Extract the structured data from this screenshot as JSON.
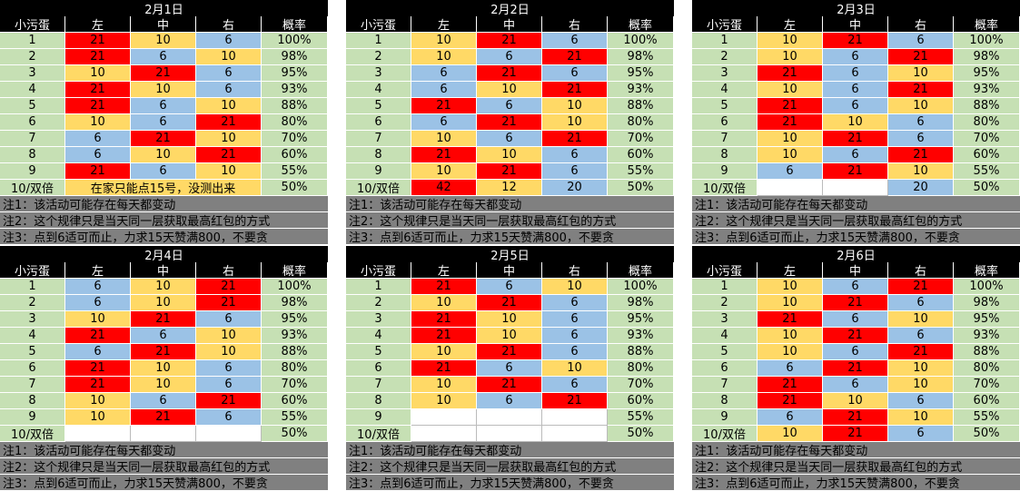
{
  "header": {
    "c0": "小污蛋",
    "c1": "左",
    "c2": "中",
    "c3": "右",
    "c4": "概率"
  },
  "notes": [
    "注1：该活动可能存在每天都变动",
    "注2：这个规律只是当天同一层获取最高红包的方式",
    "注3：点到6适可而止，力求15天赞满800，不要贪"
  ],
  "colors": {
    "red": "#ff0000",
    "yellow": "#ffd966",
    "blue": "#9bc2e6",
    "green": "#c6e0b4",
    "gray": "#808080",
    "black": "#000000"
  },
  "panels": [
    {
      "title": "2月1日",
      "rows": [
        {
          "idx": "1",
          "c": [
            "21",
            "10",
            "6"
          ],
          "p": "100%"
        },
        {
          "idx": "2",
          "c": [
            "21",
            "6",
            "10"
          ],
          "p": "98%"
        },
        {
          "idx": "3",
          "c": [
            "10",
            "21",
            "6"
          ],
          "p": "95%"
        },
        {
          "idx": "4",
          "c": [
            "21",
            "10",
            "6"
          ],
          "p": "93%"
        },
        {
          "idx": "5",
          "c": [
            "21",
            "6",
            "10"
          ],
          "p": "88%"
        },
        {
          "idx": "6",
          "c": [
            "10",
            "6",
            "21"
          ],
          "p": "80%"
        },
        {
          "idx": "7",
          "c": [
            "6",
            "21",
            "10"
          ],
          "p": "70%"
        },
        {
          "idx": "8",
          "c": [
            "6",
            "10",
            "21"
          ],
          "p": "60%"
        },
        {
          "idx": "9",
          "c": [
            "21",
            "6",
            "10"
          ],
          "p": "55%"
        },
        {
          "idx": "10/双倍",
          "merged": "在家只能点15号，没测出来",
          "p": "50%"
        }
      ]
    },
    {
      "title": "2月2日",
      "rows": [
        {
          "idx": "1",
          "c": [
            "10",
            "21",
            "6"
          ],
          "p": "100%"
        },
        {
          "idx": "2",
          "c": [
            "10",
            "6",
            "21"
          ],
          "p": "98%"
        },
        {
          "idx": "3",
          "c": [
            "6",
            "21",
            "6"
          ],
          "p": "95%"
        },
        {
          "idx": "4",
          "c": [
            "6",
            "10",
            "21"
          ],
          "p": "93%"
        },
        {
          "idx": "5",
          "c": [
            "21",
            "6",
            "10"
          ],
          "p": "88%"
        },
        {
          "idx": "6",
          "c": [
            "6",
            "21",
            "10"
          ],
          "p": "80%"
        },
        {
          "idx": "7",
          "c": [
            "10",
            "6",
            "21"
          ],
          "p": "70%"
        },
        {
          "idx": "8",
          "c": [
            "21",
            "10",
            "6"
          ],
          "p": "60%"
        },
        {
          "idx": "9",
          "c": [
            "10",
            "21",
            "6"
          ],
          "p": "55%"
        },
        {
          "idx": "10/双倍",
          "c": [
            "42",
            "12",
            "20"
          ],
          "p": "50%"
        }
      ]
    },
    {
      "title": "2月3日",
      "rows": [
        {
          "idx": "1",
          "c": [
            "10",
            "21",
            "6"
          ],
          "p": "100%"
        },
        {
          "idx": "2",
          "c": [
            "10",
            "6",
            "21"
          ],
          "p": "98%"
        },
        {
          "idx": "3",
          "c": [
            "21",
            "6",
            "10"
          ],
          "p": "95%"
        },
        {
          "idx": "4",
          "c": [
            "10",
            "6",
            "21"
          ],
          "p": "93%"
        },
        {
          "idx": "5",
          "c": [
            "21",
            "6",
            "10"
          ],
          "p": "88%"
        },
        {
          "idx": "6",
          "c": [
            "21",
            "10",
            "6"
          ],
          "p": "80%"
        },
        {
          "idx": "7",
          "c": [
            "10",
            "21",
            "6"
          ],
          "p": "70%"
        },
        {
          "idx": "8",
          "c": [
            "10",
            "6",
            "21"
          ],
          "p": "60%"
        },
        {
          "idx": "9",
          "c": [
            "6",
            "21",
            "10"
          ],
          "p": "55%"
        },
        {
          "idx": "10/双倍",
          "c": [
            "",
            "",
            "20"
          ],
          "p": "50%"
        }
      ]
    },
    {
      "title": "2月4日",
      "rows": [
        {
          "idx": "1",
          "c": [
            "6",
            "10",
            "21"
          ],
          "p": "100%"
        },
        {
          "idx": "2",
          "c": [
            "6",
            "10",
            "21"
          ],
          "p": "98%"
        },
        {
          "idx": "3",
          "c": [
            "10",
            "21",
            "6"
          ],
          "p": "95%"
        },
        {
          "idx": "4",
          "c": [
            "21",
            "6",
            "10"
          ],
          "p": "93%"
        },
        {
          "idx": "5",
          "c": [
            "6",
            "21",
            "10"
          ],
          "p": "88%"
        },
        {
          "idx": "6",
          "c": [
            "21",
            "10",
            "6"
          ],
          "p": "80%"
        },
        {
          "idx": "7",
          "c": [
            "21",
            "10",
            "6"
          ],
          "p": "70%"
        },
        {
          "idx": "8",
          "c": [
            "10",
            "6",
            "21"
          ],
          "p": "60%"
        },
        {
          "idx": "9",
          "c": [
            "10",
            "21",
            "6"
          ],
          "p": "55%"
        },
        {
          "idx": "10/双倍",
          "c": [
            "",
            "",
            ""
          ],
          "p": "50%"
        }
      ]
    },
    {
      "title": "2月5日",
      "rows": [
        {
          "idx": "1",
          "c": [
            "21",
            "6",
            "10"
          ],
          "p": "100%"
        },
        {
          "idx": "2",
          "c": [
            "10",
            "21",
            "6"
          ],
          "p": "98%"
        },
        {
          "idx": "3",
          "c": [
            "21",
            "10",
            "6"
          ],
          "p": "95%"
        },
        {
          "idx": "4",
          "c": [
            "21",
            "10",
            "6"
          ],
          "p": "93%"
        },
        {
          "idx": "5",
          "c": [
            "10",
            "21",
            "6"
          ],
          "p": "88%"
        },
        {
          "idx": "6",
          "c": [
            "21",
            "6",
            "10"
          ],
          "p": "80%"
        },
        {
          "idx": "7",
          "c": [
            "10",
            "21",
            "6"
          ],
          "p": "70%"
        },
        {
          "idx": "8",
          "c": [
            "10",
            "6",
            "21"
          ],
          "p": "60%"
        },
        {
          "idx": "9",
          "c": [
            "",
            "",
            ""
          ],
          "p": "55%"
        },
        {
          "idx": "10/双倍",
          "c": [
            "",
            "",
            ""
          ],
          "p": "50%"
        }
      ]
    },
    {
      "title": "2月6日",
      "rows": [
        {
          "idx": "1",
          "c": [
            "10",
            "6",
            "21"
          ],
          "p": "100%"
        },
        {
          "idx": "2",
          "c": [
            "10",
            "21",
            "6"
          ],
          "p": "98%"
        },
        {
          "idx": "3",
          "c": [
            "21",
            "6",
            "10"
          ],
          "p": "95%"
        },
        {
          "idx": "4",
          "c": [
            "10",
            "21",
            "6"
          ],
          "p": "93%"
        },
        {
          "idx": "5",
          "c": [
            "10",
            "6",
            "21"
          ],
          "p": "88%"
        },
        {
          "idx": "6",
          "c": [
            "6",
            "21",
            "10"
          ],
          "p": "80%"
        },
        {
          "idx": "7",
          "c": [
            "21",
            "6",
            "10"
          ],
          "p": "70%"
        },
        {
          "idx": "8",
          "c": [
            "21",
            "10",
            "6"
          ],
          "p": "60%"
        },
        {
          "idx": "9",
          "c": [
            "6",
            "21",
            "10"
          ],
          "p": "55%"
        },
        {
          "idx": "10/双倍",
          "c": [
            "10",
            "21",
            "6"
          ],
          "p": "50%"
        }
      ]
    }
  ]
}
